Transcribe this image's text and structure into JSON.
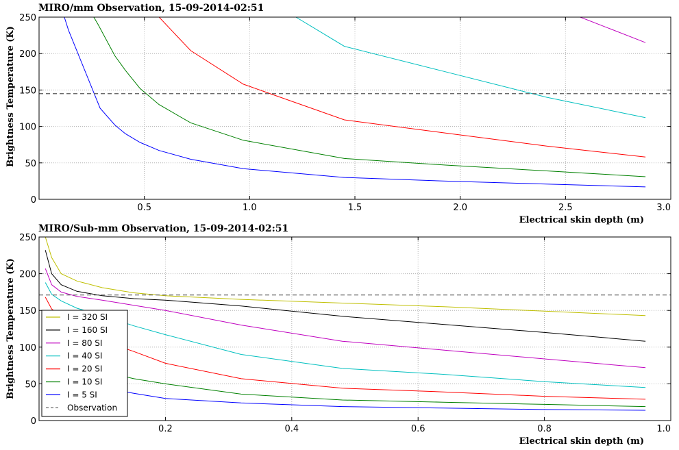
{
  "chart_data": [
    {
      "type": "line",
      "title": "MIRO/mm Observation, 15-09-2014-02:51",
      "xlabel": "Electrical skin depth (m)",
      "ylabel": "Brightness Temperature (K)",
      "xlim": [
        0.0,
        3.0
      ],
      "ylim": [
        0,
        250
      ],
      "xticks": [
        0.5,
        1.0,
        1.5,
        2.0,
        2.5,
        3.0
      ],
      "xtick_labels": [
        "0.5",
        "1.0",
        "1.5",
        "2.0",
        "2.5",
        "3.0"
      ],
      "yticks": [
        0,
        50,
        100,
        150,
        200,
        250
      ],
      "ytick_labels": [
        "0",
        "50",
        "100",
        "150",
        "200",
        "250"
      ],
      "grid": true,
      "observation": 145,
      "series": [
        {
          "name": "I = 5 SI",
          "color": "#0000ff",
          "x": [
            0.12,
            0.14,
            0.29,
            0.36,
            0.41,
            0.48,
            0.57,
            0.72,
            0.97,
            1.45,
            1.93,
            2.41,
            2.88
          ],
          "y": [
            250,
            232,
            125,
            102,
            90,
            78,
            67,
            55,
            42,
            30,
            25,
            21,
            17
          ]
        },
        {
          "name": "I = 10 SI",
          "color": "#008000",
          "x": [
            0.26,
            0.28,
            0.36,
            0.41,
            0.48,
            0.57,
            0.72,
            0.97,
            1.45,
            1.93,
            2.41,
            2.88
          ],
          "y": [
            250,
            240,
            197,
            177,
            152,
            130,
            105,
            81,
            56,
            47,
            39,
            31
          ]
        },
        {
          "name": "I = 20 SI",
          "color": "#ff0000",
          "x": [
            0.57,
            0.72,
            0.97,
            1.45,
            1.93,
            2.41,
            2.88
          ],
          "y": [
            250,
            204,
            158,
            109,
            91,
            73,
            58
          ]
        },
        {
          "name": "I = 40 SI",
          "color": "#00bfbf",
          "x": [
            1.22,
            1.45,
            1.93,
            2.41,
            2.88
          ],
          "y": [
            250,
            210,
            175,
            140,
            112
          ]
        },
        {
          "name": "I = 80 SI",
          "color": "#bf00bf",
          "x": [
            2.57,
            2.88
          ],
          "y": [
            250,
            215
          ]
        }
      ]
    },
    {
      "type": "line",
      "title": "MIRO/Sub-mm Observation, 15-09-2014-02:51",
      "xlabel": "Electrical skin depth (m)",
      "ylabel": "Brightness Temperature (K)",
      "xlim": [
        0.0,
        1.0
      ],
      "ylim": [
        0,
        250
      ],
      "xticks": [
        0.2,
        0.4,
        0.6,
        0.8,
        1.0
      ],
      "xtick_labels": [
        "0.2",
        "0.4",
        "0.6",
        "0.8",
        "1.0"
      ],
      "yticks": [
        0,
        50,
        100,
        150,
        200,
        250
      ],
      "ytick_labels": [
        "0",
        "50",
        "100",
        "150",
        "200",
        "250"
      ],
      "grid": true,
      "observation": 171,
      "legend": "lower-left",
      "legend_entries": [
        "I = 320 SI",
        "I = 160 SI",
        "I = 80 SI",
        "I = 40 SI",
        "I = 20 SI",
        "I = 10 SI",
        "I = 5 SI",
        "Observation"
      ],
      "series": [
        {
          "name": "I = 320 SI",
          "color": "#bfbf00",
          "x": [
            0.01,
            0.02,
            0.035,
            0.06,
            0.1,
            0.15,
            0.2,
            0.32,
            0.48,
            0.64,
            0.8,
            0.96
          ],
          "y": [
            250,
            222,
            200,
            190,
            181,
            174,
            170,
            165,
            160,
            155,
            149,
            143
          ]
        },
        {
          "name": "I = 160 SI",
          "color": "#000000",
          "x": [
            0.01,
            0.02,
            0.035,
            0.06,
            0.1,
            0.15,
            0.2,
            0.32,
            0.48,
            0.64,
            0.8,
            0.96
          ],
          "y": [
            232,
            200,
            185,
            176,
            170,
            166,
            164,
            156,
            142,
            131,
            120,
            108
          ]
        },
        {
          "name": "I = 80 SI",
          "color": "#bf00bf",
          "x": [
            0.01,
            0.02,
            0.035,
            0.06,
            0.1,
            0.15,
            0.2,
            0.32,
            0.48,
            0.64,
            0.8,
            0.96
          ],
          "y": [
            207,
            185,
            175,
            169,
            164,
            157,
            150,
            130,
            108,
            96,
            84,
            72
          ]
        },
        {
          "name": "I = 40 SI",
          "color": "#00bfbf",
          "x": [
            0.01,
            0.02,
            0.035,
            0.06,
            0.1,
            0.15,
            0.2,
            0.32,
            0.48,
            0.64,
            0.8,
            0.96
          ],
          "y": [
            188,
            172,
            163,
            153,
            143,
            129,
            117,
            90,
            71,
            63,
            53,
            45
          ]
        },
        {
          "name": "I = 20 SI",
          "color": "#ff0000",
          "x": [
            0.01,
            0.02,
            0.035,
            0.06,
            0.1,
            0.15,
            0.2,
            0.32,
            0.48,
            0.64,
            0.8,
            0.96
          ],
          "y": [
            168,
            152,
            143,
            126,
            109,
            94,
            78,
            57,
            44,
            39,
            33,
            29
          ]
        },
        {
          "name": "I = 10 SI",
          "color": "#008000",
          "x": [
            0.06,
            0.1,
            0.15,
            0.2,
            0.32,
            0.48,
            0.64,
            0.8,
            0.96
          ],
          "y": [
            76,
            67,
            57,
            50,
            36,
            28,
            25,
            22,
            19
          ]
        },
        {
          "name": "I = 5 SI",
          "color": "#0000ff",
          "x": [
            0.1,
            0.15,
            0.2,
            0.32,
            0.48,
            0.64,
            0.8,
            0.96
          ],
          "y": [
            45,
            37,
            30,
            24,
            19,
            17,
            15,
            14
          ]
        }
      ]
    }
  ]
}
